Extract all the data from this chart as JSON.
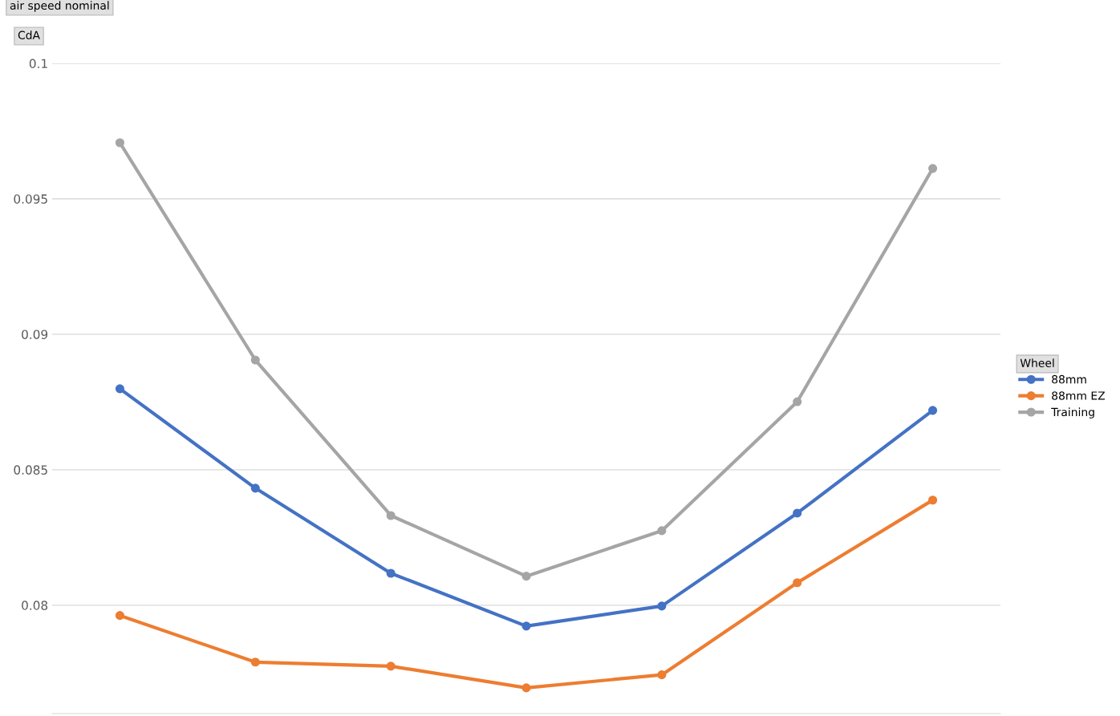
{
  "chart_data": {
    "type": "line",
    "ylabel": "CdA",
    "legend_title": "Wheel",
    "annotations": [
      "air speed nominal"
    ],
    "categories": [
      null,
      null,
      null,
      null,
      null,
      null,
      null
    ],
    "series": [
      {
        "name": "88mm",
        "color": "#4472c4",
        "values": [
          0.08799,
          0.08432,
          0.08118,
          0.07923,
          0.07997,
          0.0834,
          0.08719
        ]
      },
      {
        "name": "88mm EZ",
        "color": "#ed7d31",
        "values": [
          0.07962,
          0.0779,
          0.07775,
          0.07695,
          0.07743,
          0.08083,
          0.08388
        ]
      },
      {
        "name": "Training",
        "color": "#a5a5a5",
        "values": [
          0.09707,
          0.08905,
          0.08331,
          0.08107,
          0.08275,
          0.08751,
          0.09612
        ]
      }
    ],
    "ylim": [
      0.076,
      0.1
    ],
    "yticks": [
      0.08,
      0.085,
      0.09,
      0.095,
      0.1
    ],
    "grid": "y",
    "legend": "right",
    "marker": "circle",
    "line_style": "solid",
    "tick_labels": "y"
  }
}
